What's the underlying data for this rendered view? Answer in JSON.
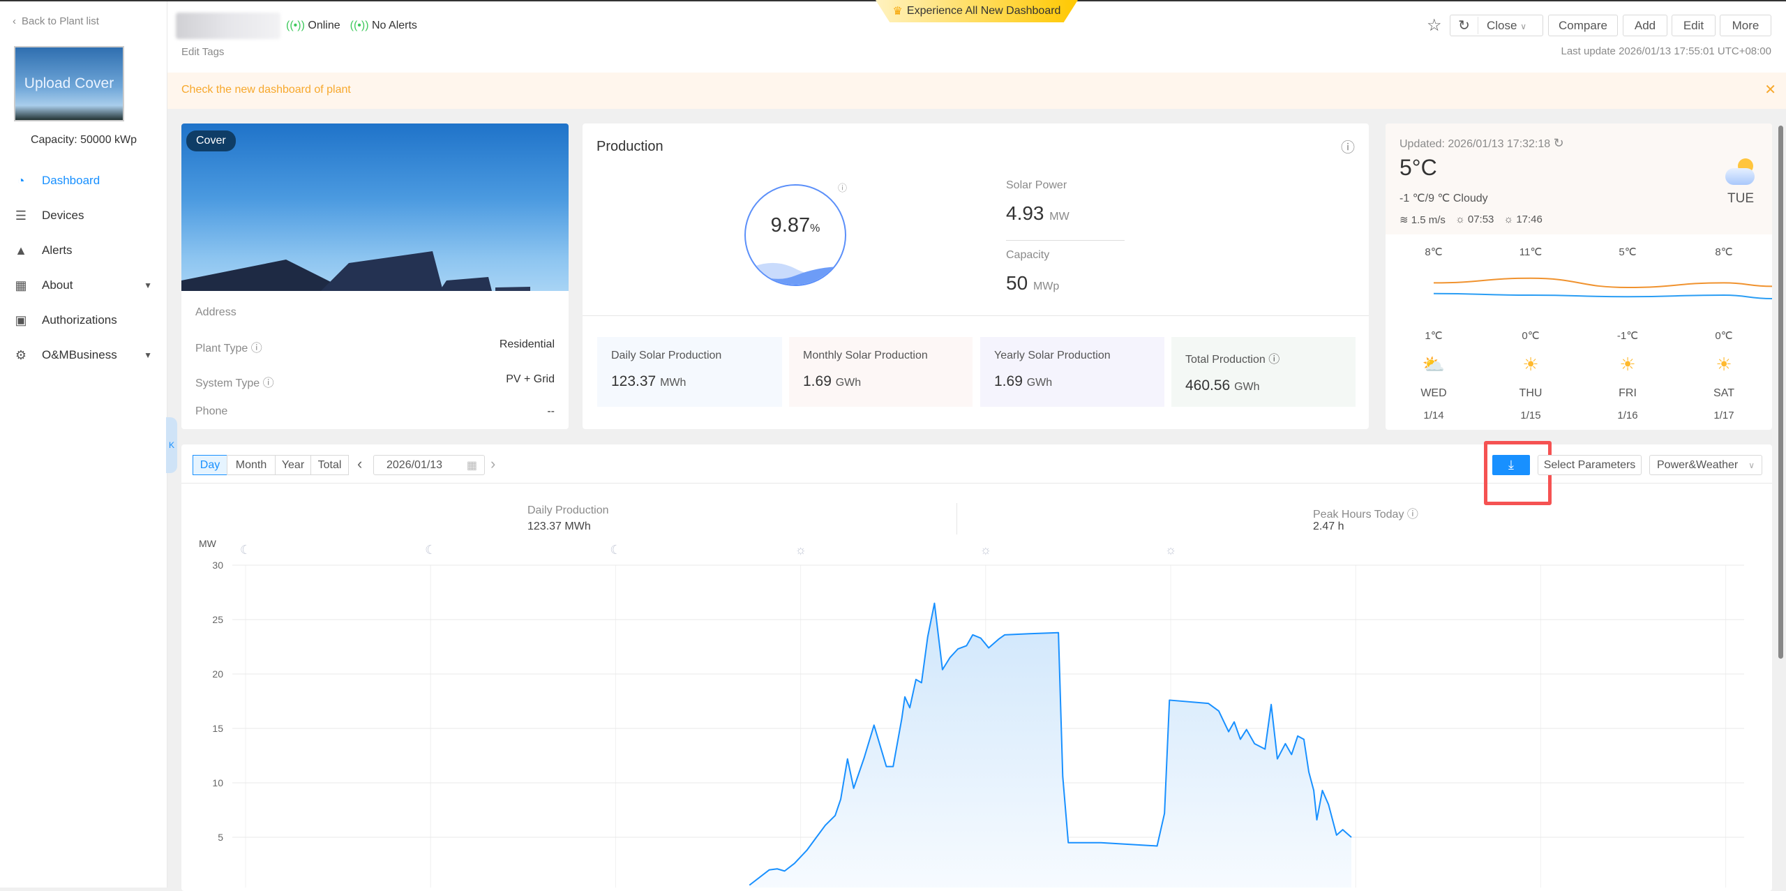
{
  "sidebar": {
    "back_label": "Back to Plant list",
    "upload_cover": "Upload Cover",
    "capacity": "Capacity: 50000 kWp",
    "items": [
      {
        "label": "Dashboard",
        "icon": "dashboard-icon",
        "active": true
      },
      {
        "label": "Devices",
        "icon": "devices-icon"
      },
      {
        "label": "Alerts",
        "icon": "alert-icon"
      },
      {
        "label": "About",
        "icon": "solar-panel-icon",
        "expandable": true
      },
      {
        "label": "Authorizations",
        "icon": "briefcase-key-icon"
      },
      {
        "label": "O&MBusiness",
        "icon": "gear-wrench-icon",
        "expandable": true
      }
    ]
  },
  "header": {
    "status_online": "Online",
    "status_alerts": "No Alerts",
    "edit_tags": "Edit Tags",
    "promo": "Experience All New Dashboard",
    "close_label": "Close",
    "compare": "Compare",
    "add": "Add",
    "edit": "Edit",
    "more": "More",
    "last_update": "Last update 2026/01/13 17:55:01 UTC+08:00"
  },
  "banner": {
    "text": "Check the new dashboard of plant"
  },
  "plant_info": {
    "cover_badge": "Cover",
    "rows": [
      {
        "label": "Address",
        "value": ""
      },
      {
        "label": "Plant Type",
        "value": "Residential",
        "help": true
      },
      {
        "label": "System Type",
        "value": "PV + Grid",
        "help": true
      },
      {
        "label": "Phone",
        "value": "--"
      }
    ]
  },
  "production": {
    "title": "Production",
    "ratio": "9.87",
    "ratio_unit": "%",
    "ratio_percent": 9.87,
    "solar_power_label": "Solar Power",
    "solar_power": "4.93",
    "solar_power_unit": "MW",
    "capacity_label": "Capacity",
    "capacity": "50",
    "capacity_unit": "MWp",
    "stats": [
      {
        "label": "Daily Solar Production",
        "value": "123.37",
        "unit": "MWh",
        "bg": "#f5f9fe"
      },
      {
        "label": "Monthly Solar Production",
        "value": "1.69",
        "unit": "GWh",
        "bg": "#fdf7f6"
      },
      {
        "label": "Yearly Solar Production",
        "value": "1.69",
        "unit": "GWh",
        "bg": "#f5f4fd"
      },
      {
        "label": "Total Production",
        "value": "460.56",
        "unit": "GWh",
        "bg": "#f4f8f5"
      }
    ]
  },
  "weather": {
    "updated": "Updated:  2026/01/13 17:32:18",
    "temp": "5°C",
    "range": "-1 ℃/9 ℃ Cloudy",
    "wind": "1.5 m/s",
    "sunrise": "07:53",
    "sunset": "17:46",
    "today": "TUE",
    "forecast": [
      {
        "high": "8℃",
        "low": "1℃",
        "day": "WED",
        "date": "1/14",
        "icon": "partly-cloudy-icon",
        "hi": 8,
        "lo": 1
      },
      {
        "high": "11℃",
        "low": "0℃",
        "day": "THU",
        "date": "1/15",
        "icon": "sun-icon",
        "hi": 11,
        "lo": 0
      },
      {
        "high": "5℃",
        "low": "-1℃",
        "day": "FRI",
        "date": "1/16",
        "icon": "sun-icon",
        "hi": 5,
        "lo": -1
      },
      {
        "high": "8℃",
        "low": "0℃",
        "day": "SAT",
        "date": "1/17",
        "icon": "sun-icon",
        "hi": 8,
        "lo": 0
      }
    ],
    "colors": {
      "high": "#f0922e",
      "low": "#2a9df4"
    }
  },
  "chart_panel": {
    "tabs": [
      "Day",
      "Month",
      "Year",
      "Total"
    ],
    "active_tab": "Day",
    "date": "2026/01/13",
    "select_parameters": "Select Parameters",
    "view_select": "Power&Weather",
    "daily_label": "Daily Production",
    "daily_value": "123.37 MWh",
    "peak_label": "Peak Hours Today",
    "peak_value": "2.47  h"
  },
  "chart_data": {
    "type": "area",
    "ylabel": "MW",
    "ylim": [
      0,
      30
    ],
    "yticks": [
      5,
      10,
      15,
      20,
      25,
      30
    ],
    "grid": true,
    "x_unit": "hour",
    "xlim": [
      0,
      24
    ],
    "color": "#1890ff",
    "weather_icons": [
      "moon",
      "moon",
      "moon",
      "sun",
      "sun",
      "sun"
    ],
    "x": [
      8.17,
      8.49,
      8.62,
      8.74,
      8.9,
      9.1,
      9.23,
      9.4,
      9.56,
      9.65,
      9.76,
      9.86,
      10.03,
      10.19,
      10.39,
      10.5,
      10.64,
      10.69,
      10.77,
      10.87,
      10.96,
      11.06,
      11.17,
      11.3,
      11.42,
      11.55,
      11.69,
      11.79,
      11.92,
      12.05,
      12.21,
      12.31,
      12.71,
      13.18,
      13.25,
      13.34,
      13.87,
      14.78,
      14.9,
      14.98,
      15.61,
      15.78,
      15.94,
      16.03,
      16.13,
      16.23,
      16.36,
      16.53,
      16.63,
      16.73,
      16.86,
      16.96,
      17.06,
      17.16,
      17.24,
      17.32,
      17.37,
      17.46,
      17.56,
      17.69,
      17.79,
      17.93
    ],
    "y": [
      0.6,
      2.0,
      2.1,
      1.9,
      2.6,
      3.8,
      4.8,
      6.1,
      7.0,
      8.5,
      12.2,
      9.5,
      12.3,
      15.3,
      11.5,
      11.5,
      15.9,
      17.9,
      16.9,
      19.5,
      19.2,
      23.4,
      26.5,
      20.4,
      21.5,
      22.3,
      22.6,
      23.6,
      23.3,
      22.4,
      23.2,
      23.6,
      23.7,
      23.8,
      10.6,
      4.5,
      4.5,
      4.2,
      7.2,
      17.6,
      17.3,
      16.6,
      14.7,
      15.6,
      14.0,
      14.9,
      13.6,
      13.1,
      17.2,
      12.2,
      13.6,
      12.6,
      14.3,
      14.0,
      11.0,
      9.3,
      6.6,
      9.3,
      8.0,
      5.2,
      5.7,
      5.0
    ]
  }
}
